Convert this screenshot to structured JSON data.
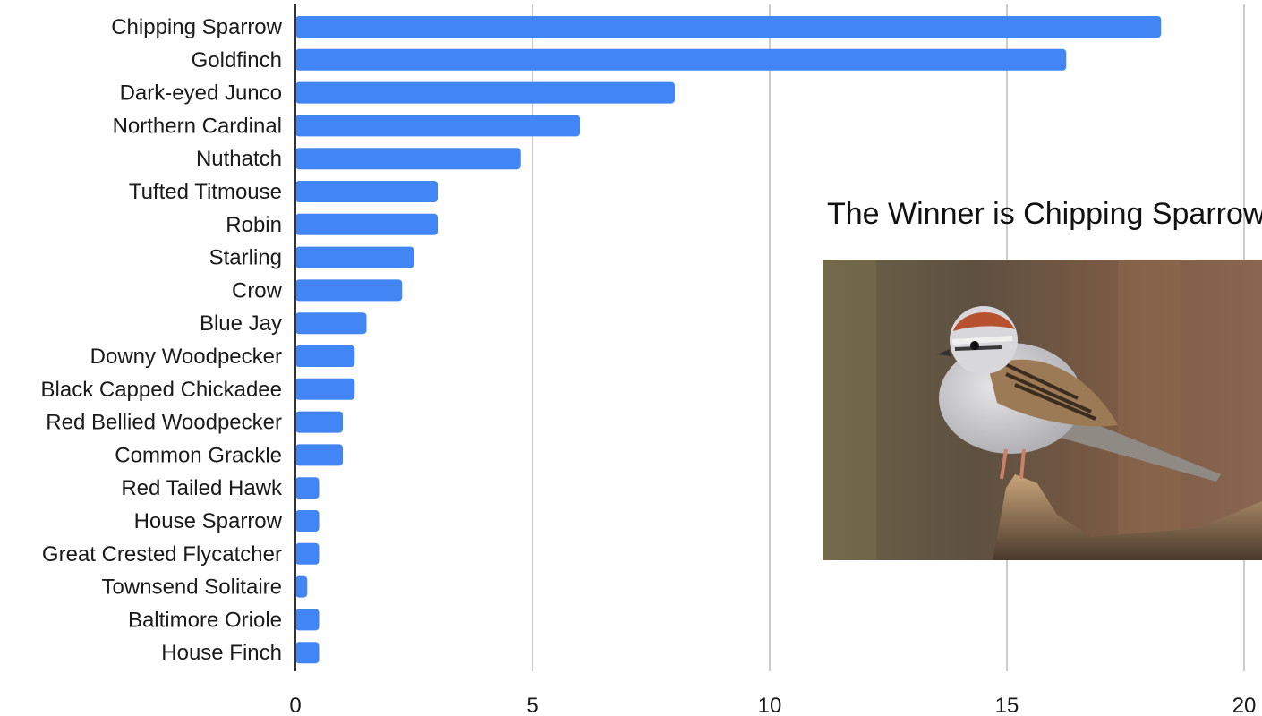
{
  "chart_data": {
    "type": "bar",
    "orientation": "horizontal",
    "categories": [
      "Chipping Sparrow",
      "Goldfinch",
      "Dark-eyed Junco",
      "Northern Cardinal",
      "Nuthatch",
      "Tufted Titmouse",
      "Robin",
      "Starling",
      "Crow",
      "Blue Jay",
      "Downy Woodpecker",
      "Black Capped Chickadee",
      "Red Bellied Woodpecker",
      "Common Grackle",
      "Red Tailed Hawk",
      "House Sparrow",
      "Great Crested Flycatcher",
      "Townsend Solitaire",
      "Baltimore Oriole",
      "House Finch"
    ],
    "values": [
      18.25,
      16.25,
      8,
      6,
      4.75,
      3,
      3,
      2.5,
      2.25,
      1.5,
      1.25,
      1.25,
      1,
      1,
      0.5,
      0.5,
      0.5,
      0.25,
      0.5,
      0.5
    ],
    "xlim": [
      0,
      20
    ],
    "xticks": [
      0,
      5,
      10,
      15,
      20
    ],
    "title": "",
    "xlabel": "",
    "ylabel": "",
    "grid": "vertical",
    "colors": {
      "bar": "#4285f4",
      "grid": "#cccccc",
      "axis": "#333333"
    }
  },
  "annotation": {
    "text": "The Winner is Chipping Sparrow",
    "photo_subject": "chipping-sparrow-photo"
  }
}
